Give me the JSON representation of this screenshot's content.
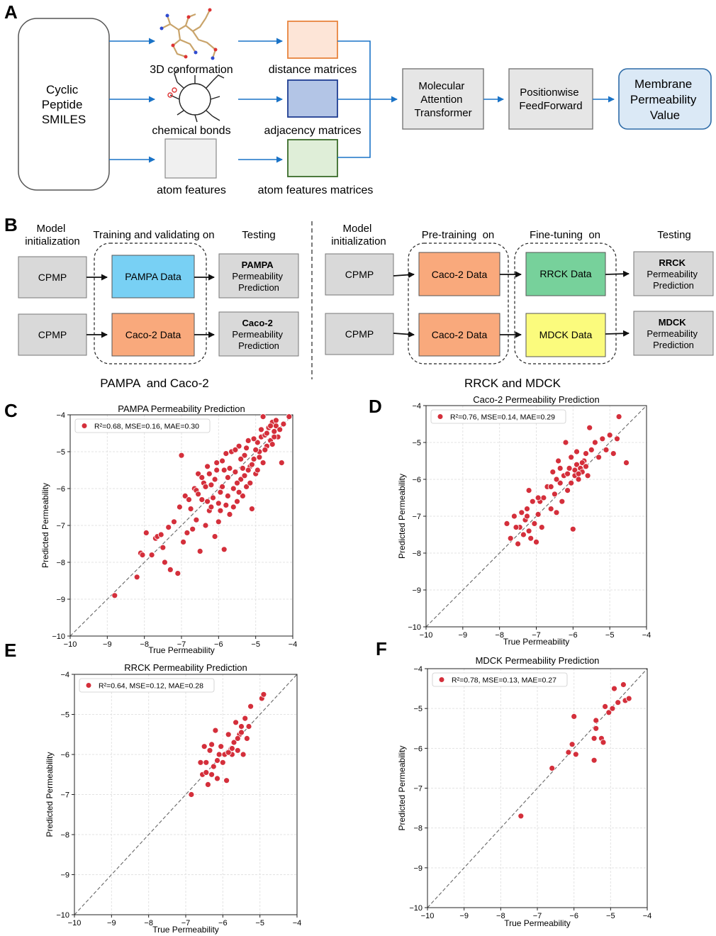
{
  "panel_labels": [
    "A",
    "B",
    "C",
    "D",
    "E",
    "F"
  ],
  "panel_a": {
    "input_box": [
      "Cyclic",
      "Peptide",
      "SMILES"
    ],
    "features": [
      "3D conformation",
      "chemical bonds",
      "atom features"
    ],
    "matrices": [
      "distance matrices",
      "adjacency matrices",
      "atom features matrices"
    ],
    "transformer": [
      "Molecular",
      "Attention",
      "Transformer"
    ],
    "feedforward": [
      "Positionwise",
      "FeedForward"
    ],
    "output": [
      "Membrane",
      "Permeability",
      "Value"
    ],
    "colors": {
      "distance": "#fde5d7",
      "distance_border": "#e8843e",
      "adjacency": "#b3c5e6",
      "adjacency_border": "#1f3d91",
      "atomfeat": "#dfeed8",
      "atomfeat_border": "#3a6b2a",
      "gray": "#e8e8e8",
      "output": "#dbe9f6",
      "output_border": "#2e6ca8",
      "arrow": "#1a73c7"
    }
  },
  "panel_b": {
    "left": {
      "header_init": [
        "Model",
        "initialization"
      ],
      "header_train": "Training and validating on",
      "header_test": "Testing",
      "model": "CPMP",
      "row1_data": "PAMPA Data",
      "row1_test_bold": "PAMPA",
      "row2_data": "Caco-2 Data",
      "row2_test_bold": "Caco-2",
      "test_lines": [
        "Permeability",
        "Prediction"
      ],
      "caption": "PAMPA  and Caco-2"
    },
    "right": {
      "header_init": [
        "Model",
        "initialization"
      ],
      "header_pre": "Pre-training  on",
      "header_fine": "Fine-tuning  on",
      "header_test": "Testing",
      "model": "CPMP",
      "pre_data": "Caco-2 Data",
      "row1_fine": "RRCK Data",
      "row1_test_bold": "RRCK",
      "row2_fine": "MDCK Data",
      "row2_test_bold": "MDCK",
      "test_lines": [
        "Permeability",
        "Prediction"
      ],
      "caption": "RRCK and MDCK"
    },
    "colors": {
      "pampa": "#78d0f4",
      "caco2": "#f9a97c",
      "rrck": "#77d19b",
      "mdck": "#fbfb7d",
      "gray": "#d9d9d9"
    }
  },
  "chart_data": [
    {
      "type": "scatter",
      "title": "PAMPA Permeability Prediction",
      "xlabel": "True Permeability",
      "ylabel": "Predicted Permeability",
      "xlim": [
        -10,
        -4
      ],
      "ylim": [
        -10,
        -4
      ],
      "ticks": [
        -10,
        -9,
        -8,
        -7,
        -6,
        -5,
        -4
      ],
      "legend": "R²=0.68, MSE=0.16, MAE=0.30",
      "legend_position": "top-left",
      "grid": true,
      "diagonal": true,
      "point_color": "#d42f3b",
      "points": [
        [
          -8.8,
          -8.9
        ],
        [
          -8.2,
          -8.4
        ],
        [
          -8.1,
          -7.75
        ],
        [
          -8.05,
          -7.8
        ],
        [
          -7.95,
          -7.2
        ],
        [
          -7.8,
          -7.8
        ],
        [
          -7.7,
          -7.35
        ],
        [
          -7.65,
          -7.3
        ],
        [
          -7.55,
          -7.25
        ],
        [
          -7.5,
          -7.6
        ],
        [
          -7.45,
          -8.0
        ],
        [
          -7.35,
          -7.05
        ],
        [
          -7.3,
          -8.2
        ],
        [
          -7.2,
          -6.9
        ],
        [
          -7.1,
          -8.3
        ],
        [
          -7.05,
          -6.5
        ],
        [
          -7.0,
          -5.1
        ],
        [
          -6.95,
          -7.45
        ],
        [
          -6.9,
          -6.2
        ],
        [
          -6.85,
          -7.2
        ],
        [
          -6.75,
          -6.55
        ],
        [
          -6.7,
          -7.1
        ],
        [
          -6.65,
          -6.0
        ],
        [
          -6.6,
          -6.85
        ],
        [
          -6.55,
          -5.6
        ],
        [
          -6.5,
          -7.7
        ],
        [
          -6.45,
          -6.3
        ],
        [
          -6.4,
          -5.85
        ],
        [
          -6.35,
          -7.0
        ],
        [
          -6.3,
          -5.4
        ],
        [
          -6.25,
          -6.6
        ],
        [
          -6.2,
          -5.9
        ],
        [
          -6.15,
          -6.25
        ],
        [
          -6.1,
          -7.3
        ],
        [
          -6.05,
          -5.5
        ],
        [
          -6.0,
          -6.9
        ],
        [
          -5.95,
          -6.1
        ],
        [
          -5.9,
          -5.25
        ],
        [
          -5.85,
          -7.65
        ],
        [
          -5.8,
          -6.45
        ],
        [
          -5.75,
          -5.7
        ],
        [
          -5.7,
          -6.7
        ],
        [
          -5.65,
          -5.0
        ],
        [
          -5.6,
          -6.0
        ],
        [
          -5.55,
          -5.55
        ],
        [
          -5.5,
          -6.35
        ],
        [
          -5.45,
          -4.85
        ],
        [
          -5.4,
          -5.75
        ],
        [
          -5.35,
          -6.2
        ],
        [
          -5.3,
          -5.1
        ],
        [
          -5.25,
          -5.95
        ],
        [
          -5.2,
          -4.7
        ],
        [
          -5.15,
          -5.4
        ],
        [
          -5.1,
          -6.55
        ],
        [
          -5.05,
          -5.2
        ],
        [
          -5.0,
          -5.6
        ],
        [
          -4.95,
          -4.75
        ],
        [
          -4.9,
          -5.0
        ],
        [
          -4.85,
          -4.6
        ],
        [
          -4.8,
          -5.3
        ],
        [
          -4.75,
          -4.55
        ],
        [
          -4.7,
          -4.85
        ],
        [
          -4.65,
          -4.35
        ],
        [
          -4.6,
          -4.7
        ],
        [
          -4.55,
          -4.2
        ],
        [
          -4.5,
          -4.45
        ],
        [
          -4.45,
          -4.3
        ],
        [
          -4.4,
          -4.6
        ],
        [
          -4.35,
          -4.4
        ],
        [
          -4.3,
          -5.3
        ],
        [
          -4.25,
          -4.25
        ],
        [
          -4.1,
          -4.05
        ],
        [
          -4.8,
          -4.05
        ],
        [
          -6.6,
          -6.05
        ],
        [
          -6.3,
          -6.35
        ],
        [
          -6.1,
          -5.75
        ],
        [
          -5.9,
          -5.95
        ],
        [
          -5.7,
          -5.45
        ],
        [
          -5.5,
          -5.85
        ],
        [
          -5.3,
          -5.65
        ],
        [
          -5.1,
          -5.35
        ],
        [
          -4.9,
          -5.15
        ],
        [
          -6.45,
          -5.7
        ],
        [
          -6.2,
          -6.5
        ],
        [
          -5.95,
          -6.6
        ],
        [
          -5.6,
          -6.5
        ],
        [
          -5.4,
          -5.2
        ],
        [
          -5.2,
          -5.5
        ],
        [
          -5.0,
          -4.95
        ],
        [
          -4.7,
          -4.5
        ],
        [
          -4.5,
          -4.6
        ],
        [
          -4.6,
          -4.3
        ],
        [
          -6.8,
          -6.3
        ],
        [
          -6.55,
          -6.15
        ],
        [
          -6.35,
          -5.95
        ],
        [
          -6.05,
          -5.3
        ],
        [
          -5.8,
          -5.05
        ],
        [
          -5.55,
          -4.95
        ],
        [
          -5.25,
          -4.9
        ],
        [
          -5.05,
          -4.65
        ],
        [
          -4.85,
          -4.4
        ],
        [
          -4.45,
          -4.15
        ],
        [
          -6.0,
          -6.4
        ],
        [
          -5.75,
          -6.2
        ],
        [
          -5.45,
          -6.1
        ],
        [
          -5.15,
          -5.85
        ],
        [
          -4.95,
          -5.5
        ],
        [
          -6.25,
          -5.6
        ],
        [
          -5.85,
          -5.5
        ],
        [
          -5.35,
          -5.45
        ],
        [
          -4.75,
          -4.95
        ],
        [
          -4.55,
          -4.8
        ]
      ]
    },
    {
      "type": "scatter",
      "title": "Caco-2 Permeability Prediction",
      "xlabel": "True Permeability",
      "ylabel": "Predicted Permeability",
      "xlim": [
        -10,
        -4
      ],
      "ylim": [
        -10,
        -4
      ],
      "ticks": [
        -10,
        -9,
        -8,
        -7,
        -6,
        -5,
        -4
      ],
      "legend": "R²=0.76, MSE=0.14, MAE=0.29",
      "legend_position": "top-left",
      "grid": true,
      "diagonal": true,
      "point_color": "#d42f3b",
      "points": [
        [
          -7.8,
          -7.2
        ],
        [
          -7.7,
          -7.6
        ],
        [
          -7.6,
          -7.0
        ],
        [
          -7.5,
          -7.75
        ],
        [
          -7.45,
          -7.3
        ],
        [
          -7.4,
          -6.9
        ],
        [
          -7.35,
          -7.5
        ],
        [
          -7.3,
          -7.1
        ],
        [
          -7.25,
          -6.8
        ],
        [
          -7.2,
          -7.4
        ],
        [
          -7.15,
          -7.6
        ],
        [
          -7.1,
          -6.6
        ],
        [
          -7.05,
          -7.2
        ],
        [
          -7.0,
          -7.7
        ],
        [
          -6.95,
          -6.95
        ],
        [
          -6.9,
          -6.6
        ],
        [
          -6.85,
          -7.3
        ],
        [
          -6.8,
          -6.5
        ],
        [
          -6.7,
          -6.2
        ],
        [
          -6.6,
          -6.8
        ],
        [
          -6.55,
          -5.8
        ],
        [
          -6.5,
          -6.4
        ],
        [
          -6.45,
          -6.9
        ],
        [
          -6.4,
          -5.5
        ],
        [
          -6.35,
          -6.1
        ],
        [
          -6.3,
          -6.6
        ],
        [
          -6.25,
          -5.9
        ],
        [
          -6.2,
          -5.0
        ],
        [
          -6.15,
          -6.3
        ],
        [
          -6.1,
          -5.7
        ],
        [
          -6.05,
          -5.4
        ],
        [
          -6.0,
          -7.35
        ],
        [
          -5.95,
          -5.9
        ],
        [
          -5.9,
          -5.6
        ],
        [
          -5.85,
          -6.0
        ],
        [
          -5.8,
          -5.7
        ],
        [
          -5.75,
          -5.8
        ],
        [
          -5.7,
          -5.5
        ],
        [
          -5.65,
          -5.3
        ],
        [
          -5.6,
          -5.9
        ],
        [
          -5.55,
          -4.6
        ],
        [
          -5.5,
          -5.2
        ],
        [
          -5.4,
          -5.0
        ],
        [
          -5.3,
          -5.4
        ],
        [
          -5.2,
          -4.9
        ],
        [
          -5.1,
          -5.2
        ],
        [
          -5.0,
          -4.8
        ],
        [
          -4.9,
          -5.3
        ],
        [
          -4.8,
          -4.9
        ],
        [
          -4.75,
          -4.3
        ],
        [
          -4.55,
          -5.55
        ],
        [
          -5.95,
          -5.75
        ],
        [
          -5.85,
          -5.85
        ],
        [
          -5.75,
          -5.55
        ],
        [
          -5.65,
          -5.65
        ],
        [
          -6.15,
          -5.85
        ],
        [
          -6.05,
          -6.1
        ],
        [
          -6.35,
          -5.7
        ],
        [
          -6.6,
          -6.2
        ],
        [
          -6.95,
          -6.5
        ],
        [
          -7.25,
          -7.0
        ],
        [
          -7.55,
          -7.3
        ],
        [
          -7.2,
          -6.3
        ],
        [
          -6.45,
          -6.0
        ],
        [
          -5.9,
          -5.25
        ]
      ]
    },
    {
      "type": "scatter",
      "title": "RRCK Permeability Prediction",
      "xlabel": "True Permeability",
      "ylabel": "Predicted Permeability",
      "xlim": [
        -10,
        -4
      ],
      "ylim": [
        -10,
        -4
      ],
      "ticks": [
        -10,
        -9,
        -8,
        -7,
        -6,
        -5,
        -4
      ],
      "legend": "R²=0.64, MSE=0.12, MAE=0.28",
      "legend_position": "top-left",
      "grid": true,
      "diagonal": true,
      "point_color": "#d42f3b",
      "points": [
        [
          -6.85,
          -7.0
        ],
        [
          -6.6,
          -6.2
        ],
        [
          -6.55,
          -6.5
        ],
        [
          -6.5,
          -5.8
        ],
        [
          -6.45,
          -6.2
        ],
        [
          -6.4,
          -6.75
        ],
        [
          -6.35,
          -5.9
        ],
        [
          -6.3,
          -6.5
        ],
        [
          -6.25,
          -6.3
        ],
        [
          -6.2,
          -5.4
        ],
        [
          -6.15,
          -6.6
        ],
        [
          -6.1,
          -6.0
        ],
        [
          -6.05,
          -5.8
        ],
        [
          -6.0,
          -6.2
        ],
        [
          -5.95,
          -6.0
        ],
        [
          -5.9,
          -6.65
        ],
        [
          -5.85,
          -5.5
        ],
        [
          -5.8,
          -5.9
        ],
        [
          -5.75,
          -6.0
        ],
        [
          -5.7,
          -5.7
        ],
        [
          -5.65,
          -5.2
        ],
        [
          -5.6,
          -5.9
        ],
        [
          -5.55,
          -5.5
        ],
        [
          -5.5,
          -5.3
        ],
        [
          -5.45,
          -6.0
        ],
        [
          -5.4,
          -5.1
        ],
        [
          -5.35,
          -5.6
        ],
        [
          -5.3,
          -5.3
        ],
        [
          -5.25,
          -4.8
        ],
        [
          -4.95,
          -4.6
        ],
        [
          -4.9,
          -4.5
        ],
        [
          -5.75,
          -5.85
        ],
        [
          -5.6,
          -5.6
        ],
        [
          -6.3,
          -5.75
        ],
        [
          -6.45,
          -6.45
        ],
        [
          -6.15,
          -6.15
        ],
        [
          -5.5,
          -5.45
        ],
        [
          -5.85,
          -5.95
        ]
      ]
    },
    {
      "type": "scatter",
      "title": "MDCK Permeability Prediction",
      "xlabel": "True Permeability",
      "ylabel": "Predicted Permeability",
      "xlim": [
        -10,
        -4
      ],
      "ylim": [
        -10,
        -4
      ],
      "ticks": [
        -10,
        -9,
        -8,
        -7,
        -6,
        -5,
        -4
      ],
      "legend": "R²=0.78, MSE=0.13, MAE=0.27",
      "legend_position": "top-left",
      "grid": true,
      "diagonal": true,
      "point_color": "#d42f3b",
      "points": [
        [
          -7.45,
          -7.7
        ],
        [
          -6.6,
          -6.5
        ],
        [
          -6.15,
          -6.1
        ],
        [
          -6.05,
          -5.9
        ],
        [
          -6.0,
          -5.2
        ],
        [
          -5.95,
          -6.15
        ],
        [
          -5.45,
          -6.3
        ],
        [
          -5.45,
          -5.75
        ],
        [
          -5.4,
          -5.3
        ],
        [
          -5.4,
          -5.5
        ],
        [
          -5.25,
          -5.75
        ],
        [
          -5.2,
          -5.85
        ],
        [
          -5.15,
          -4.95
        ],
        [
          -5.05,
          -5.1
        ],
        [
          -4.95,
          -5.0
        ],
        [
          -4.9,
          -4.5
        ],
        [
          -4.8,
          -4.85
        ],
        [
          -4.65,
          -4.4
        ],
        [
          -4.6,
          -4.8
        ],
        [
          -4.5,
          -4.75
        ]
      ]
    }
  ]
}
